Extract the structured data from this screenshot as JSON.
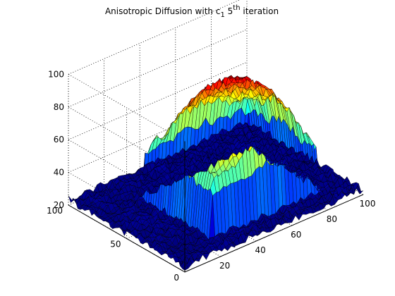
{
  "chart_data": {
    "type": "surface",
    "title": {
      "main": "Anisotropic Diffusion with c",
      "subscript": "1",
      "space": " ",
      "number": "5",
      "superscript": "th",
      "suffix": " iteration"
    },
    "xlabel": "",
    "ylabel": "",
    "zlabel": "",
    "xlim": [
      0,
      100
    ],
    "ylim": [
      0,
      100
    ],
    "zlim": [
      20,
      100
    ],
    "x_ticks": [
      "20",
      "40",
      "60",
      "80",
      "100"
    ],
    "y_ticks": [
      "0",
      "50",
      "100"
    ],
    "z_ticks": [
      "20",
      "40",
      "60",
      "80",
      "100"
    ],
    "grid": true,
    "colormap": "jet",
    "surface": {
      "grid_size": 100,
      "plateau_x": [
        25,
        85
      ],
      "plateau_y": [
        15,
        75
      ],
      "base_level": 23,
      "plateau_edge_level": 58,
      "peak_level": 90,
      "peak_location": [
        55,
        45
      ]
    }
  }
}
